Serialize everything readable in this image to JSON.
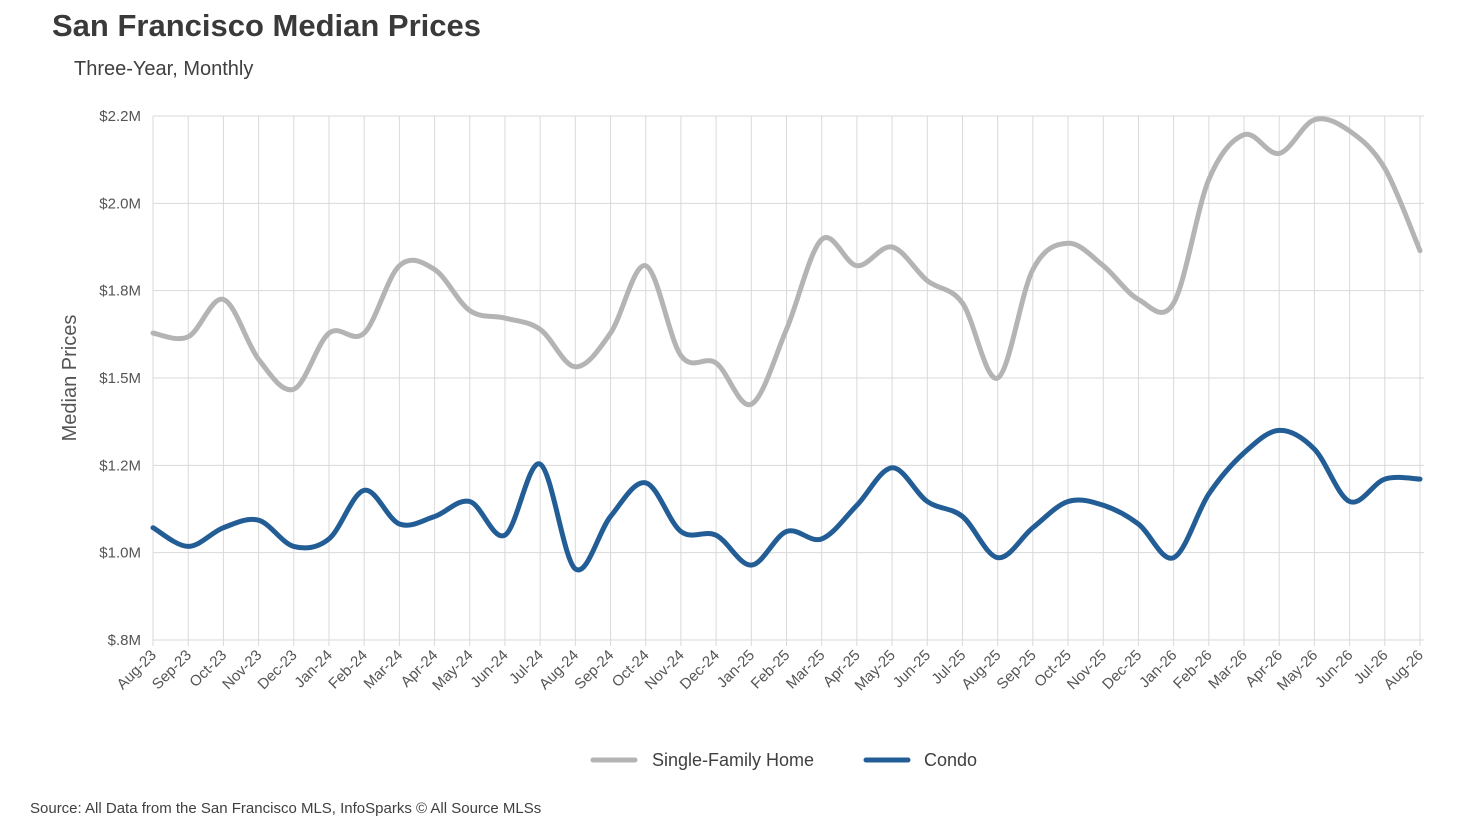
{
  "chart_data": {
    "type": "line",
    "title": "San Francisco Median Prices",
    "subtitle": "Three-Year, Monthly",
    "ylabel": "Median Prices",
    "xlabel": "",
    "source": "Source: All Data from the San Francisco MLS, InfoSparks © All Source MLSs",
    "y_ticks": [
      "$.8M",
      "$1.0M",
      "$1.2M",
      "$1.5M",
      "$1.8M",
      "$2.0M",
      "$2.2M"
    ],
    "ylim": [
      0.8,
      2.2
    ],
    "grid": true,
    "legend_position": "bottom-center",
    "categories": [
      "Aug-23",
      "Sep-23",
      "Oct-23",
      "Nov-23",
      "Dec-23",
      "Jan-24",
      "Feb-24",
      "Mar-24",
      "Apr-24",
      "May-24",
      "Jun-24",
      "Jul-24",
      "Aug-24",
      "Sep-24",
      "Oct-24",
      "Nov-24",
      "Dec-24",
      "Jan-25",
      "Feb-25",
      "Mar-25",
      "Apr-25",
      "May-25",
      "Jun-25",
      "Jul-25",
      "Aug-25",
      "Sep-25",
      "Oct-25",
      "Nov-25",
      "Dec-25",
      "Jan-26",
      "Feb-26",
      "Mar-26",
      "Apr-26",
      "May-26",
      "Jun-26",
      "Jul-26",
      "Aug-26"
    ],
    "series": [
      {
        "name": "Single-Family Home",
        "color": "#b4b4b4",
        "values": [
          1.62,
          1.61,
          1.71,
          1.55,
          1.47,
          1.62,
          1.62,
          1.8,
          1.79,
          1.68,
          1.66,
          1.63,
          1.53,
          1.62,
          1.8,
          1.56,
          1.54,
          1.43,
          1.63,
          1.87,
          1.8,
          1.85,
          1.76,
          1.7,
          1.5,
          1.79,
          1.86,
          1.8,
          1.71,
          1.7,
          2.03,
          2.15,
          2.1,
          2.19,
          2.16,
          2.06,
          1.84
        ]
      },
      {
        "name": "Condo",
        "color": "#235d96",
        "values": [
          1.1,
          1.05,
          1.1,
          1.12,
          1.05,
          1.07,
          1.2,
          1.11,
          1.13,
          1.17,
          1.08,
          1.27,
          0.99,
          1.13,
          1.22,
          1.09,
          1.08,
          1.0,
          1.09,
          1.07,
          1.16,
          1.26,
          1.17,
          1.13,
          1.02,
          1.1,
          1.17,
          1.16,
          1.11,
          1.02,
          1.19,
          1.3,
          1.36,
          1.31,
          1.17,
          1.23,
          1.23
        ]
      }
    ]
  }
}
